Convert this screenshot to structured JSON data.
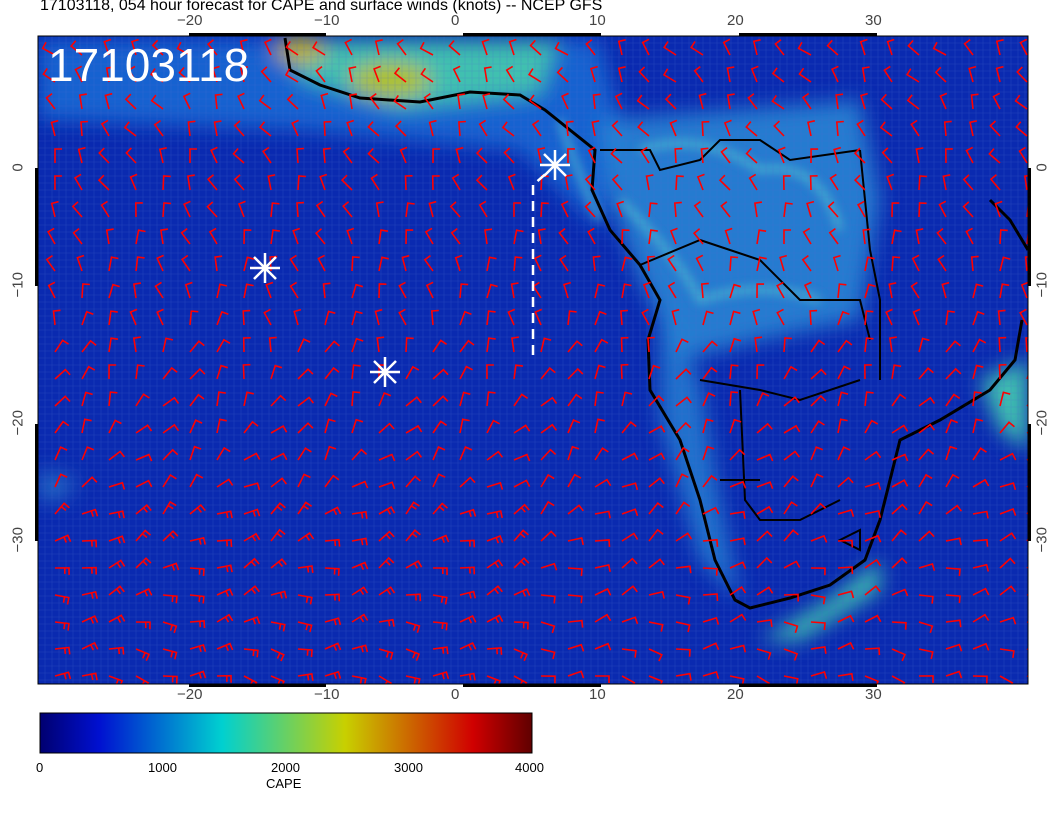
{
  "title": "17103118, 054 hour forecast for CAPE and surface winds (knots) -- NCEP GFS",
  "stamp": "17103118",
  "map": {
    "lon_ticks": [
      "−20",
      "−10",
      "0",
      "10",
      "20",
      "30"
    ],
    "lat_ticks": [
      "0",
      "−10",
      "−20",
      "−30"
    ],
    "lon_range": [
      -31,
      41
    ],
    "lat_range": [
      9,
      -40
    ],
    "field": "CAPE",
    "barb_color": "#ff0000",
    "markers": [
      "star",
      "star",
      "star"
    ]
  },
  "colorbar": {
    "labels": [
      "0",
      "1000",
      "2000",
      "3000",
      "4000"
    ],
    "title": "CAPE",
    "range": [
      0,
      4000
    ],
    "colors": [
      "#000070",
      "#0010d0",
      "#00d0d0",
      "#c8d000",
      "#d00000",
      "#600000"
    ]
  }
}
